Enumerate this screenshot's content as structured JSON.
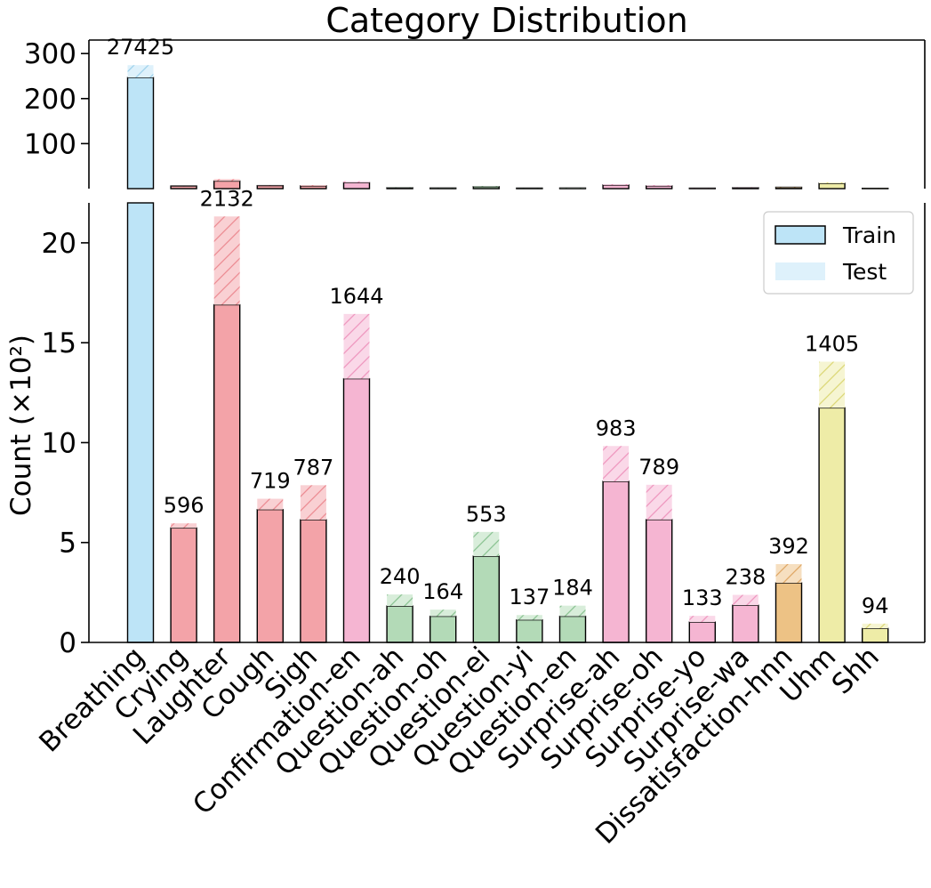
{
  "chart_data": {
    "type": "bar",
    "title": "Category Distribution",
    "xlabel": "",
    "ylabel": "Count (×10²)",
    "broken_axis": true,
    "upper_ylim": [
      0,
      330
    ],
    "upper_ticks": [
      "100",
      "200",
      "300"
    ],
    "upper_tick_values": [
      100,
      200,
      300
    ],
    "lower_ylim": [
      0,
      22
    ],
    "lower_ticks": [
      "0",
      "5",
      "10",
      "15",
      "20"
    ],
    "lower_tick_values": [
      0,
      5,
      10,
      15,
      20
    ],
    "legend_position": "upper-right",
    "legend": {
      "train": "Train",
      "test": "Test"
    },
    "categories": [
      "Breathing",
      "Crying",
      "Laughter",
      "Cough",
      "Sigh",
      "Confirmation-en",
      "Question-ah",
      "Question-oh",
      "Question-ei",
      "Question-yi",
      "Question-en",
      "Surprise-ah",
      "Surprise-oh",
      "Surprise-yo",
      "Surprise-wa",
      "Dissatisfaction-hnn",
      "Uhm",
      "Shh"
    ],
    "series": [
      {
        "name": "Train",
        "values": [
          246.8,
          5.73,
          16.9,
          6.65,
          6.14,
          13.2,
          1.82,
          1.31,
          4.32,
          1.13,
          1.31,
          8.06,
          6.15,
          1.02,
          1.86,
          2.98,
          11.74,
          0.7
        ]
      },
      {
        "name": "Test",
        "values": [
          27.45,
          0.23,
          4.42,
          0.54,
          1.73,
          3.24,
          0.58,
          0.33,
          1.21,
          0.24,
          0.53,
          1.77,
          1.74,
          0.31,
          0.52,
          0.94,
          2.31,
          0.24
        ]
      }
    ],
    "totals": [
      27425,
      596,
      2132,
      719,
      787,
      1644,
      240,
      164,
      553,
      137,
      184,
      983,
      789,
      133,
      238,
      392,
      1405,
      94
    ],
    "total_labels": [
      "27425",
      "596",
      "2132",
      "719",
      "787",
      "1644",
      "240",
      "164",
      "553",
      "137",
      "184",
      "983",
      "789",
      "133",
      "238",
      "392",
      "1405",
      "94"
    ],
    "colors": [
      "#bde4f7",
      "#f3a3a8",
      "#f3a3a8",
      "#f3a3a8",
      "#f3a3a8",
      "#f5b5d2",
      "#b3dab7",
      "#b3dab7",
      "#b3dab7",
      "#b3dab7",
      "#b3dab7",
      "#f5b5d2",
      "#f5b5d2",
      "#f5b5d2",
      "#f5b5d2",
      "#edc285",
      "#eeeca7",
      "#eeeca7"
    ],
    "test_colors": [
      "#def1fb",
      "#f9d0d3",
      "#f9d0d3",
      "#f9d0d3",
      "#f9d0d3",
      "#fad8e8",
      "#d8edda",
      "#d8edda",
      "#d8edda",
      "#d8edda",
      "#d8edda",
      "#fad8e8",
      "#fad8e8",
      "#fad8e8",
      "#fad8e8",
      "#f6dfc0",
      "#f6f5d2",
      "#f6f5d2"
    ],
    "hatch_colors": [
      "#9fd3ec",
      "#ec8c93",
      "#ec8c93",
      "#ec8c93",
      "#ec8c93",
      "#ef97bf",
      "#8cc493",
      "#8cc493",
      "#8cc493",
      "#8cc493",
      "#8cc493",
      "#ef97bf",
      "#ef97bf",
      "#ef97bf",
      "#ef97bf",
      "#e0a866",
      "#dcd878",
      "#dcd878"
    ]
  }
}
